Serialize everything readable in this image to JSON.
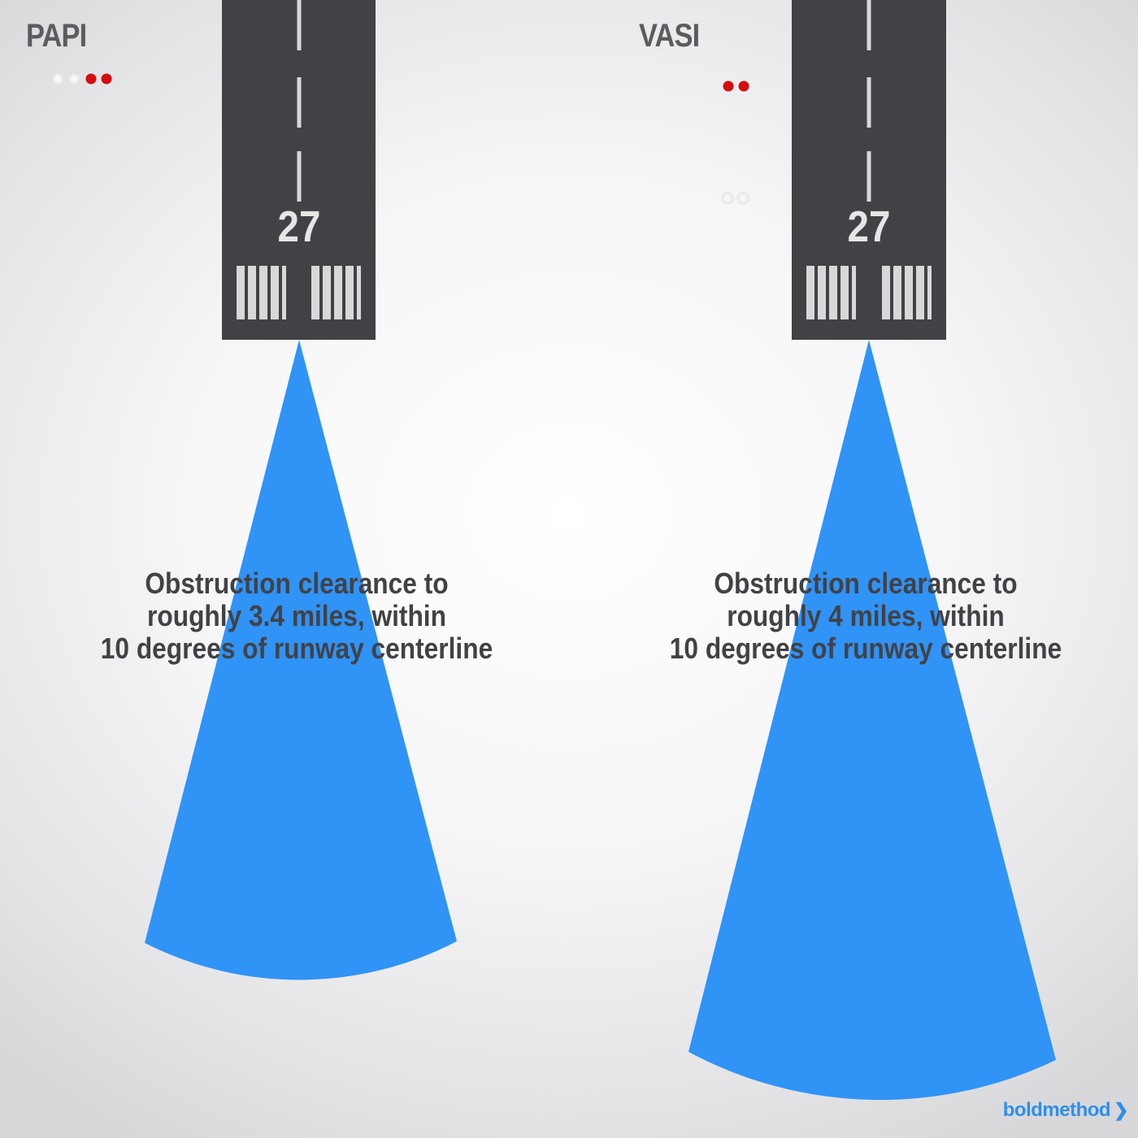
{
  "colors": {
    "runway": "#414146",
    "marking": "#d8d8d8",
    "sector": "#3093f6",
    "light_white": "#ffffff",
    "light_red": "#d60d0d",
    "text": "#424246",
    "title": "#5c5c60",
    "brand": "#2f8fe8"
  },
  "panels": [
    {
      "id": "papi",
      "title": "PAPI",
      "lights": [
        "white",
        "white",
        "red",
        "red"
      ],
      "runway_number": "27",
      "caption": [
        "Obstruction clearance to",
        "roughly 3.4 miles, within",
        "10 degrees of runway centerline"
      ],
      "clearance_miles": 3.4,
      "half_angle_deg": 10
    },
    {
      "id": "vasi",
      "title": "VASI",
      "lights": {
        "far_bar": [
          "red",
          "red"
        ],
        "near_bar": [
          "white",
          "white"
        ]
      },
      "runway_number": "27",
      "caption": [
        "Obstruction clearance to",
        "roughly 4 miles, within",
        "10 degrees of runway centerline"
      ],
      "clearance_miles": 4,
      "half_angle_deg": 10
    }
  ],
  "brand": {
    "name": "boldmethod",
    "arrow": "❯"
  }
}
